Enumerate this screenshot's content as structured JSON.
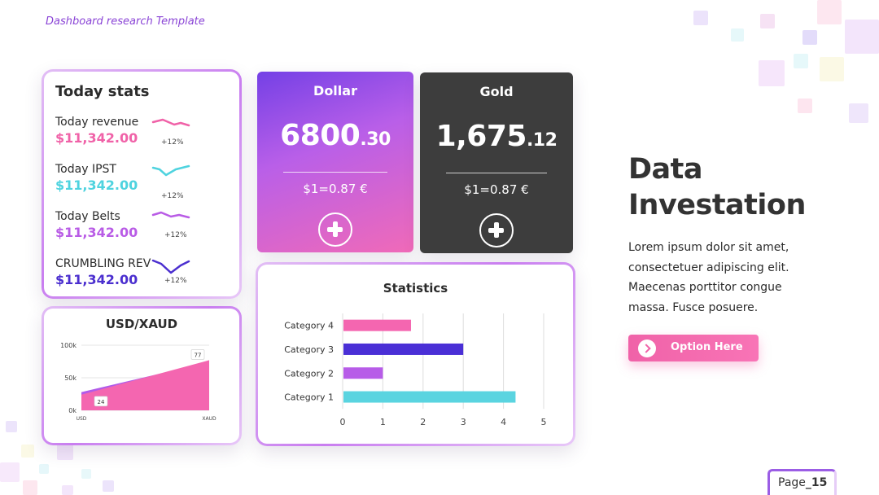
{
  "header": {
    "kicker": "Dashboard research Template"
  },
  "today_stats": {
    "title": "Today stats",
    "items": [
      {
        "label": "Today revenue",
        "value": "$11,342.00",
        "change": "+12%",
        "color": "#f062a8"
      },
      {
        "label": "Today IPST",
        "value": "$11,342.00",
        "change": "+12%",
        "color": "#4fd3df"
      },
      {
        "label": "Today Belts",
        "value": "$11,342.00",
        "change": "+12%",
        "color": "#b95ce6"
      },
      {
        "label": "CRUMBLING REV",
        "value": "$11,342.00",
        "change": "+12%",
        "color": "#4b2fcf"
      }
    ]
  },
  "usd_xaud": {
    "title": "USD/XAUD",
    "chart_data": {
      "type": "area",
      "title": "USD/XAUD",
      "x": [
        "USD",
        "XAUD"
      ],
      "series": [
        {
          "values": [
            28,
            74
          ],
          "color": "#b15bea"
        },
        {
          "values": [
            24,
            77
          ],
          "color": "#f466b0"
        }
      ],
      "y_ticks": [
        "100k",
        "50k",
        "0k"
      ],
      "ylim": [
        0,
        100
      ],
      "data_labels": [
        "24",
        "77"
      ]
    }
  },
  "currency_cards": [
    {
      "name": "Dollar",
      "value_main": "6800",
      "value_decimal": ".30",
      "rate": "$1=0.87 €"
    },
    {
      "name": "Gold",
      "value_main": "1,675",
      "value_decimal": ".12",
      "rate": "$1=0.87 €"
    }
  ],
  "statistics": {
    "title": "Statistics",
    "chart_data": {
      "type": "bar",
      "orientation": "horizontal",
      "title": "Statistics",
      "categories": [
        "Category 4",
        "Category 3",
        "Category 2",
        "Category 1"
      ],
      "values": [
        1.7,
        3.0,
        1.0,
        4.3
      ],
      "colors": [
        "#f466b0",
        "#4a2fd6",
        "#b75ce8",
        "#5ad4e0"
      ],
      "x_ticks": [
        "0",
        "1",
        "2",
        "3",
        "4",
        "5"
      ],
      "xlim": [
        0,
        5
      ],
      "grid": true
    }
  },
  "hero": {
    "title_line1": "Data",
    "title_line2": "Investation",
    "body": "Lorem ipsum dolor sit amet, consectetuer adipiscing elit. Maecenas porttitor congue massa. Fusce posuere."
  },
  "option_button": {
    "label": "Option Here"
  },
  "page": {
    "prefix": "Page",
    "number": "_15"
  }
}
